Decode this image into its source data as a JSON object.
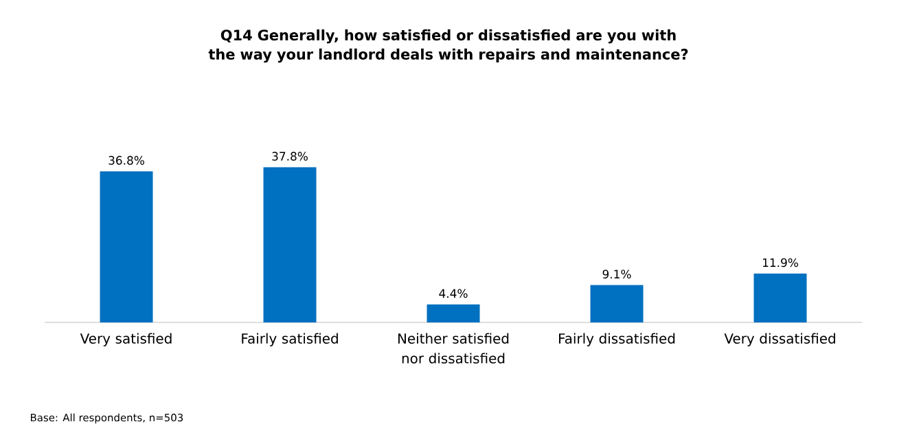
{
  "chart_data": {
    "type": "bar",
    "title": "Q14 Generally, how satisfied or dissatisfied are you with the way your landlord deals with repairs and maintenance?",
    "categories": [
      "Very satisfied",
      "Fairly satisfied",
      "Neither satisfied nor dissatisfied",
      "Fairly dissatisfied",
      "Very dissatisfied"
    ],
    "values": [
      36.8,
      37.8,
      4.4,
      9.1,
      11.9
    ],
    "value_labels": [
      "36.8%",
      "37.8%",
      "4.4%",
      "9.1%",
      "11.9%"
    ],
    "color": "#0070c0",
    "annotations": [
      "Base: All respondents, n=503"
    ]
  }
}
